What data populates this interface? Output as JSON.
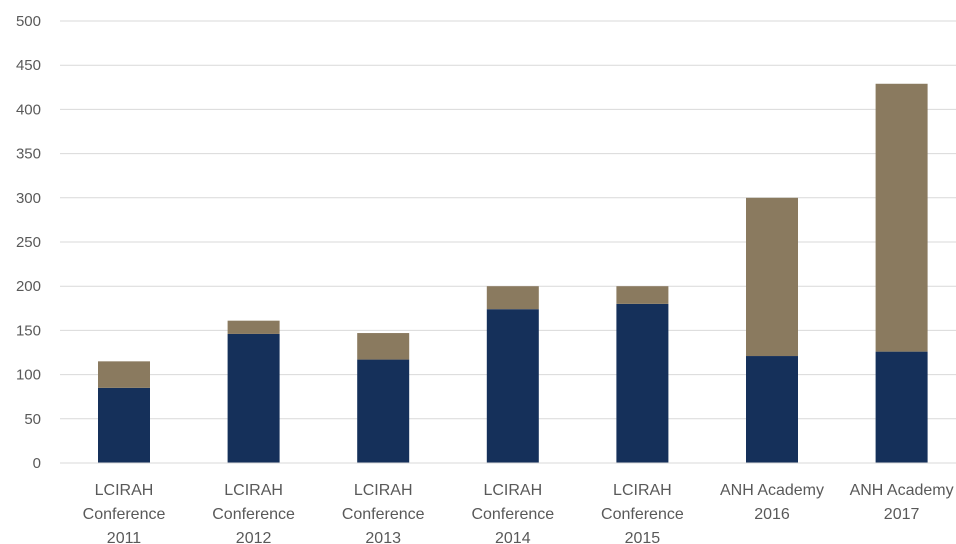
{
  "chart_data": {
    "type": "bar",
    "stacked": true,
    "categories": [
      [
        "LCIRAH",
        "Conference",
        "2011"
      ],
      [
        "LCIRAH",
        "Conference",
        "2012"
      ],
      [
        "LCIRAH",
        "Conference",
        "2013"
      ],
      [
        "LCIRAH",
        "Conference",
        "2014"
      ],
      [
        "LCIRAH",
        "Conference",
        "2015"
      ],
      [
        "ANH Academy",
        "2016"
      ],
      [
        "ANH Academy",
        "2017"
      ]
    ],
    "series": [
      {
        "values": [
          85,
          146,
          117,
          174,
          180,
          121,
          126
        ],
        "color": "#15305a"
      },
      {
        "values": [
          30,
          15,
          30,
          26,
          20,
          179,
          303
        ],
        "color": "#8a7a5f"
      }
    ],
    "ylim": [
      0,
      500
    ],
    "yticks": [
      "0",
      "50",
      "100",
      "150",
      "200",
      "250",
      "300",
      "350",
      "400",
      "450",
      "500"
    ],
    "grid": true,
    "legend": false
  }
}
